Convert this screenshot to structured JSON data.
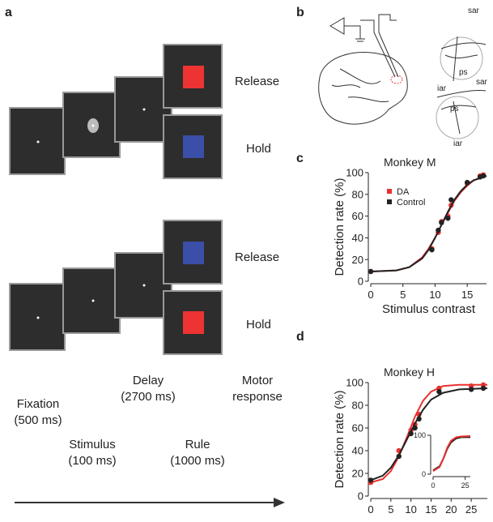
{
  "panel_labels": [
    "a",
    "b",
    "c",
    "d"
  ],
  "task": {
    "top_right": [
      "Release",
      "Hold"
    ],
    "bottom_right": [
      "Release",
      "Hold"
    ],
    "epochs": [
      [
        "Fixation",
        "(500 ms)"
      ],
      [
        "Stimulus",
        "(100 ms)"
      ],
      [
        "Delay",
        "(2700 ms)"
      ],
      [
        "Rule",
        "(1000 ms)"
      ],
      [
        "Motor",
        "response"
      ]
    ]
  },
  "anatomy": {
    "upper": [
      "sar",
      "ps",
      "iar"
    ],
    "lower": [
      "sar",
      "ps",
      "iar"
    ]
  },
  "chart_data": [
    {
      "type": "scatter",
      "title": "Monkey M",
      "xlabel": "Stimulus contrast",
      "ylabel": "Detection rate (%)",
      "xlim": [
        0,
        18
      ],
      "xticks": [
        0,
        5,
        10,
        15
      ],
      "ylim": [
        0,
        100
      ],
      "yticks": [
        0,
        20,
        40,
        60,
        80,
        100
      ],
      "legend": "upper-left",
      "series": [
        {
          "name": "DA",
          "color": "#e8312f",
          "x": [
            0,
            9.5,
            10.5,
            11,
            12,
            12.5,
            15,
            17,
            17.5
          ],
          "values": [
            9,
            30,
            45,
            55,
            60,
            70,
            90,
            97,
            98
          ],
          "fit_x": [
            0,
            4,
            6,
            8,
            9,
            10,
            11,
            12,
            13,
            14,
            15,
            16,
            18
          ],
          "fit": [
            9,
            10,
            13,
            22,
            30,
            40,
            52,
            63,
            74,
            82,
            88,
            93,
            97
          ]
        },
        {
          "name": "Control",
          "color": "#222222",
          "x": [
            0,
            9.5,
            10.5,
            11,
            12,
            12.5,
            15,
            17,
            17.5
          ],
          "values": [
            9,
            29,
            47,
            54,
            58,
            75,
            91,
            96,
            97
          ],
          "fit_x": [
            0,
            4,
            6,
            8,
            9,
            10,
            11,
            12,
            13,
            14,
            15,
            16,
            18
          ],
          "fit": [
            9,
            10,
            13,
            21,
            29,
            40,
            52,
            64,
            75,
            83,
            89,
            93,
            97
          ]
        }
      ]
    },
    {
      "type": "scatter",
      "title": "Monkey H",
      "xlabel": "Stimulus contrast",
      "ylabel": "Detection rate (%)",
      "xlim": [
        0,
        29
      ],
      "xticks": [
        0,
        5,
        10,
        15,
        20,
        25
      ],
      "ylim": [
        0,
        100
      ],
      "yticks": [
        0,
        20,
        40,
        60,
        80,
        100
      ],
      "series": [
        {
          "color": "#e8312f",
          "x": [
            0,
            7,
            10,
            11,
            12,
            17,
            25,
            28
          ],
          "values": [
            12,
            40,
            58,
            63,
            72,
            95,
            97,
            98
          ],
          "fit_x": [
            0,
            3,
            5,
            7,
            9,
            11,
            13,
            15,
            18,
            22,
            29
          ],
          "fit": [
            12,
            15,
            22,
            35,
            52,
            70,
            84,
            92,
            97,
            98,
            98
          ]
        },
        {
          "color": "#222222",
          "x": [
            0,
            7,
            10,
            11,
            12,
            17,
            25,
            28
          ],
          "values": [
            14,
            35,
            55,
            60,
            68,
            92,
            94,
            95
          ],
          "fit_x": [
            0,
            3,
            5,
            7,
            9,
            11,
            13,
            15,
            18,
            22,
            29
          ],
          "fit": [
            14,
            18,
            25,
            36,
            50,
            64,
            76,
            85,
            91,
            94,
            95
          ]
        }
      ]
    },
    {
      "type": "line",
      "xlim": [
        0,
        29
      ],
      "xticks": [
        0,
        25
      ],
      "ylim": [
        0,
        100
      ],
      "yticks": [
        0,
        100
      ],
      "series": [
        {
          "color": "#222222",
          "x": [
            0,
            5,
            8,
            11,
            14,
            18,
            22,
            29
          ],
          "values": [
            10,
            20,
            40,
            65,
            82,
            92,
            95,
            95
          ]
        },
        {
          "color": "#e8312f",
          "x": [
            0,
            5,
            8,
            11,
            14,
            18,
            22,
            29
          ],
          "values": [
            8,
            18,
            40,
            68,
            86,
            95,
            97,
            98
          ]
        }
      ]
    }
  ]
}
